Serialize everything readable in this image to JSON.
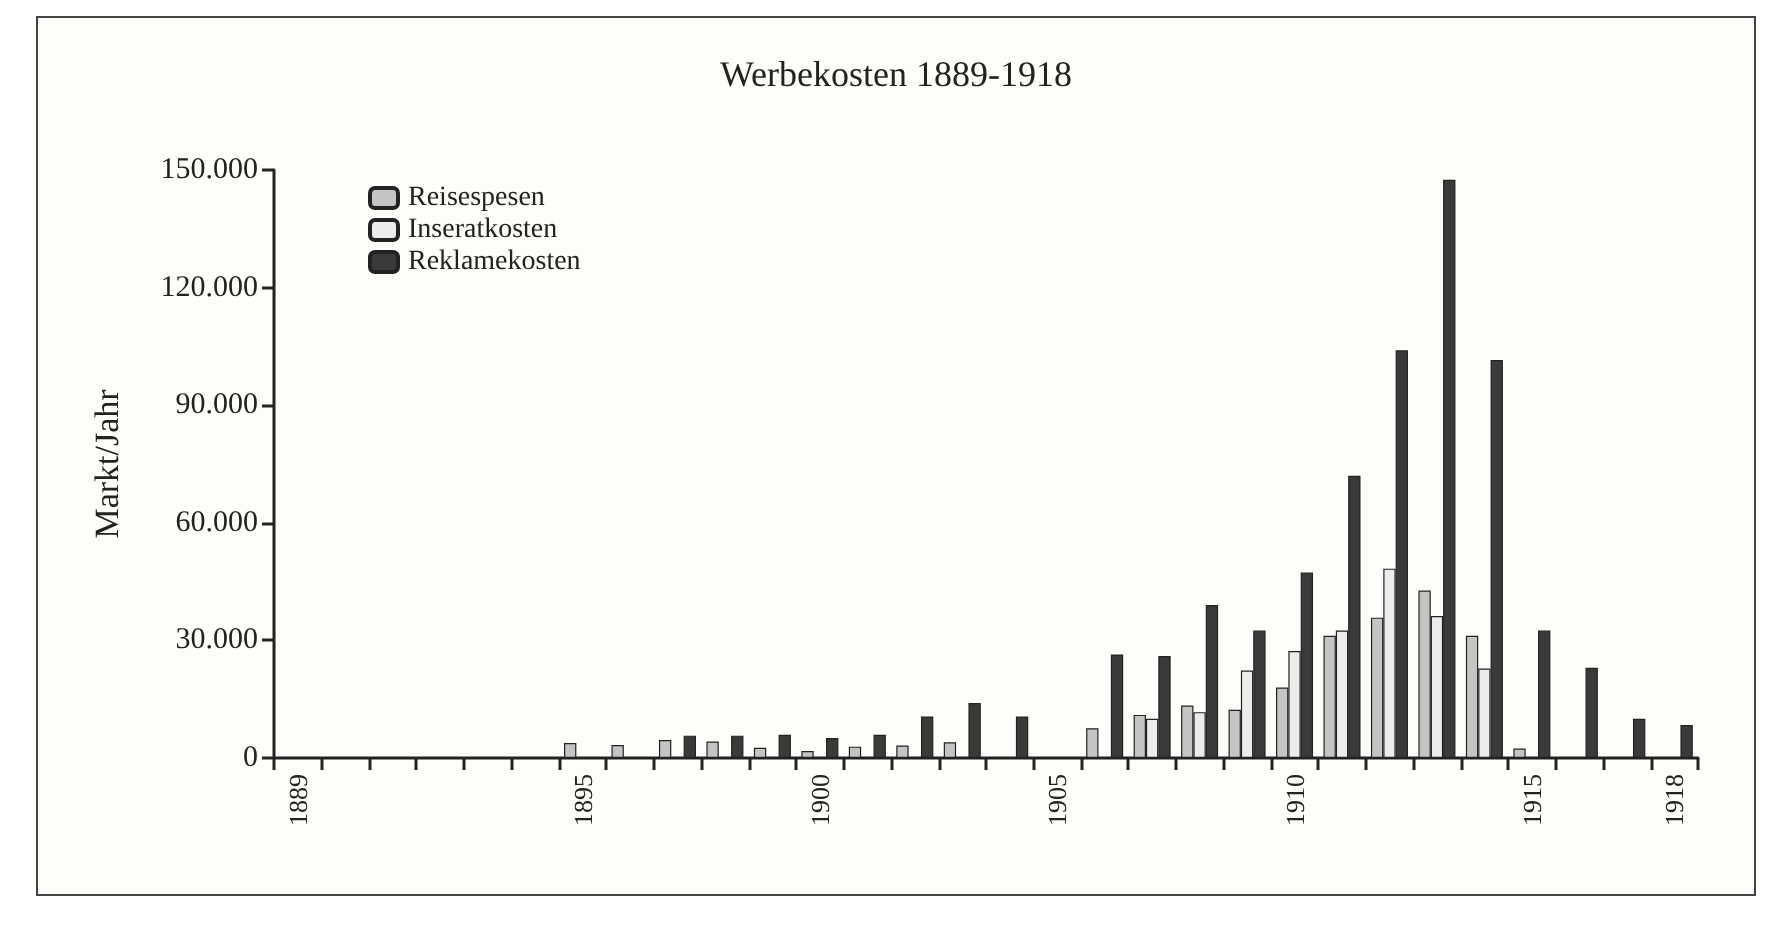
{
  "chart_data": {
    "type": "bar",
    "title": "Werbekosten 1889-1918",
    "ylabel": "Markt/Jahr",
    "categories": [
      "1889",
      null,
      null,
      null,
      null,
      null,
      "1895",
      null,
      null,
      null,
      null,
      "1900",
      null,
      null,
      null,
      null,
      "1905",
      null,
      null,
      null,
      null,
      "1910",
      null,
      null,
      null,
      null,
      "1915",
      null,
      null,
      "1918"
    ],
    "series": [
      {
        "name": "Reisespesen",
        "color": "#c4c4c4",
        "values": [
          null,
          null,
          null,
          null,
          null,
          null,
          3800,
          3300,
          4600,
          4200,
          2600,
          1800,
          2900,
          3200,
          4000,
          null,
          null,
          7600,
          11000,
          13400,
          12300,
          18000,
          31200,
          35800,
          42700,
          31200,
          2400,
          null,
          null,
          null
        ]
      },
      {
        "name": "Inseratkosten",
        "color": "#ececec",
        "values": [
          null,
          null,
          null,
          null,
          null,
          null,
          null,
          null,
          null,
          null,
          null,
          null,
          null,
          null,
          null,
          null,
          null,
          null,
          10000,
          11700,
          22300,
          27300,
          32500,
          48300,
          36200,
          22800,
          null,
          null,
          null,
          null
        ]
      },
      {
        "name": "Reklamekosten",
        "color": "#3a3a3a",
        "values": [
          null,
          null,
          null,
          null,
          null,
          null,
          null,
          null,
          5700,
          5700,
          5900,
          5100,
          5900,
          10600,
          14000,
          10600,
          null,
          26400,
          26000,
          39000,
          32500,
          47300,
          72000,
          104000,
          147500,
          101500,
          32500,
          23000,
          10000,
          8400
        ]
      }
    ],
    "ylim": [
      0,
      150000
    ],
    "yticks": [
      0,
      {
        "value": 30000,
        "label": "30.000"
      },
      {
        "value": 60000,
        "label": "60.000"
      },
      {
        "value": 90000,
        "label": "90.000"
      },
      {
        "value": 120000,
        "label": "120.000"
      },
      {
        "value": 150000,
        "label": "150.000"
      }
    ],
    "grid": false,
    "legend": "top left"
  }
}
